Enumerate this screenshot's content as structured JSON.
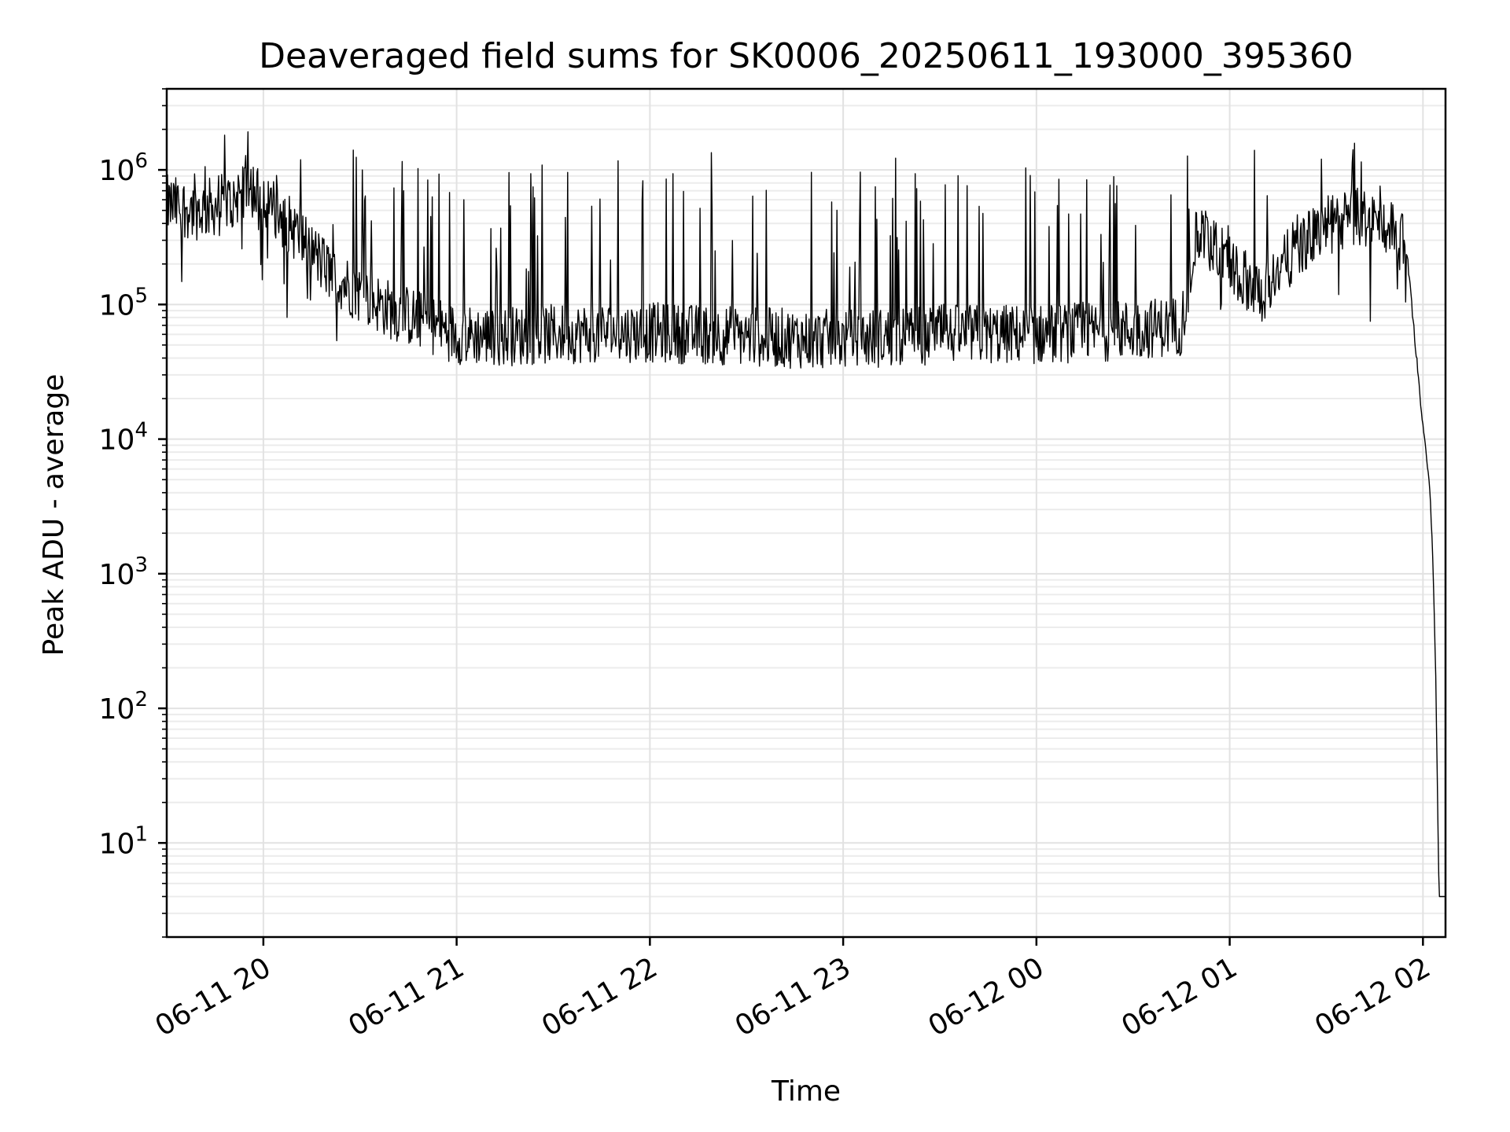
{
  "chart_data": {
    "type": "line",
    "title": "Deaveraged field sums for SK0006_20250611_193000_395360",
    "xlabel": "Time",
    "ylabel": "Peak ADU - average",
    "yscale": "log",
    "xlim": [
      "06-11 19:30",
      "06-12 02:07"
    ],
    "ylim": [
      2,
      4000000
    ],
    "grid": true,
    "x_ticks": [
      "06-11 20",
      "06-11 21",
      "06-11 22",
      "06-11 23",
      "06-12 00",
      "06-12 01",
      "06-12 02"
    ],
    "y_ticks": [
      {
        "base": "10",
        "exp": "1",
        "value": 10
      },
      {
        "base": "10",
        "exp": "2",
        "value": 100
      },
      {
        "base": "10",
        "exp": "3",
        "value": 1000
      },
      {
        "base": "10",
        "exp": "4",
        "value": 10000
      },
      {
        "base": "10",
        "exp": "5",
        "value": 100000
      },
      {
        "base": "10",
        "exp": "6",
        "value": 1000000
      }
    ],
    "series_color": "#000000",
    "series": [
      {
        "x": [
          "06-11 19:30",
          "06-11 19:40",
          "06-11 19:50",
          "06-11 19:55",
          "06-11 20:00",
          "06-11 20:10",
          "06-11 20:20",
          "06-11 20:30",
          "06-11 20:40",
          "06-11 20:50",
          "06-11 21:00",
          "06-11 21:15",
          "06-11 21:30",
          "06-11 21:45",
          "06-11 22:00",
          "06-11 22:15",
          "06-11 22:30",
          "06-11 22:45",
          "06-11 23:00",
          "06-11 23:15",
          "06-11 23:30",
          "06-11 23:45",
          "06-12 00:00",
          "06-12 00:15",
          "06-12 00:30",
          "06-12 00:45",
          "06-12 00:50",
          "06-12 01:00",
          "06-12 01:10",
          "06-12 01:20",
          "06-12 01:30",
          "06-12 01:40",
          "06-12 01:50",
          "06-12 01:55",
          "06-12 02:00",
          "06-12 02:02",
          "06-12 02:03",
          "06-12 02:04",
          "06-12 02:05",
          "06-12 02:07"
        ],
        "y": [
          550000,
          500000,
          580000,
          800000,
          600000,
          350000,
          180000,
          120000,
          90000,
          75000,
          60000,
          58000,
          60000,
          62000,
          62000,
          60000,
          58000,
          56000,
          55000,
          57000,
          60000,
          60000,
          60000,
          62000,
          65000,
          70000,
          350000,
          200000,
          120000,
          250000,
          380000,
          450000,
          380000,
          250000,
          12000,
          5000,
          1500,
          150,
          4,
          4
        ]
      }
    ]
  }
}
